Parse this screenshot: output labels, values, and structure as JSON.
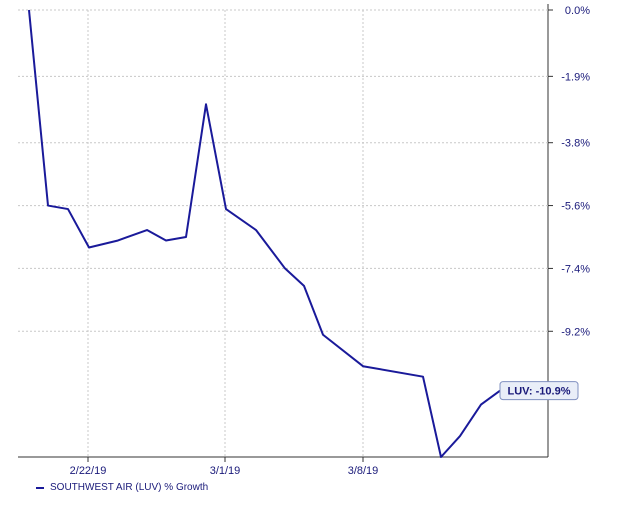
{
  "chart_data": {
    "type": "line",
    "title": "",
    "xlabel": "",
    "ylabel": "",
    "x_tick_labels": [
      "2/22/19",
      "3/1/19",
      "3/8/19"
    ],
    "y_tick_labels": [
      "0.0%",
      "-1.9%",
      "-3.8%",
      "-5.6%",
      "-7.4%",
      "-9.2%"
    ],
    "y_tick_values": [
      0.0,
      -1.9,
      -3.8,
      -5.6,
      -7.4,
      -9.2
    ],
    "ylim": [
      -12.8,
      0.0
    ],
    "grid": true,
    "legend_position": "bottom-left",
    "series": [
      {
        "name": "SOUTHWEST AIR (LUV) % Growth",
        "color": "#1a1a9a",
        "x": [
          "2/15/19",
          "2/19/19",
          "2/20/19",
          "2/21/19",
          "2/22/19",
          "2/25/19",
          "2/26/19",
          "2/27/19",
          "2/28/19",
          "3/1/19",
          "3/4/19",
          "3/5/19",
          "3/6/19",
          "3/7/19",
          "3/8/19",
          "3/11/19",
          "3/12/19",
          "3/13/19",
          "3/14/19",
          "3/15/19"
        ],
        "values": [
          0.0,
          -5.6,
          -5.7,
          -6.8,
          -6.6,
          -6.3,
          -6.6,
          -6.5,
          -2.7,
          -5.7,
          -6.3,
          -7.4,
          -7.9,
          -9.3,
          -10.2,
          -10.5,
          -12.8,
          -12.2,
          -11.3,
          -10.9
        ]
      }
    ],
    "annotation": {
      "label": "LUV: -10.9%",
      "value": -10.9
    }
  }
}
